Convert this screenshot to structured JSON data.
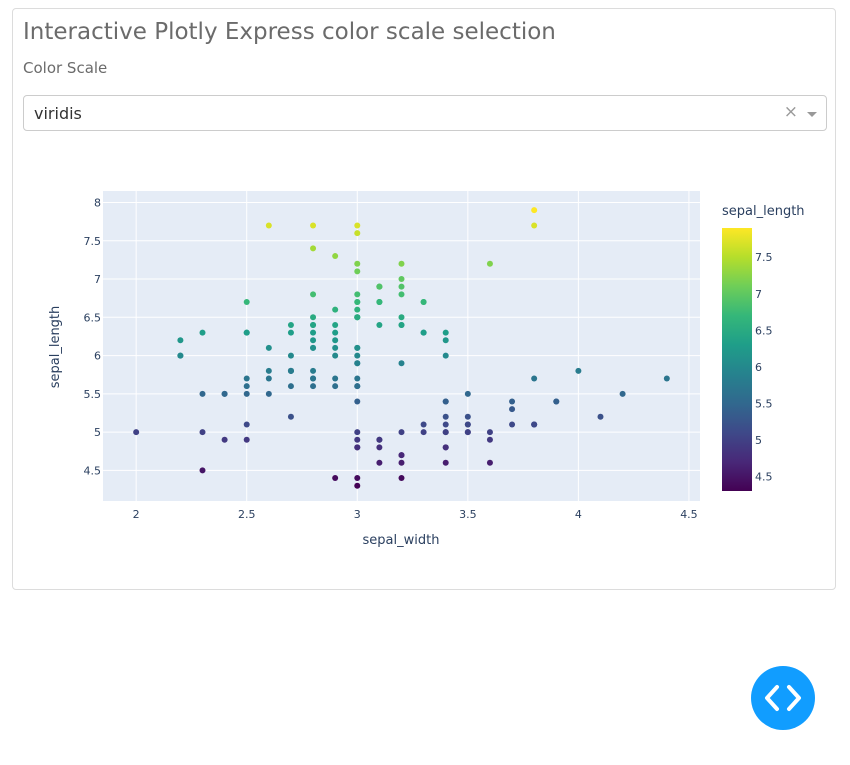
{
  "page": {
    "title": "Interactive Plotly Express color scale selection"
  },
  "control": {
    "label": "Color Scale",
    "selected": "viridis",
    "clear_glyph": "×"
  },
  "fab": {
    "icon": "code-icon",
    "color": "#119dff"
  },
  "colors": {
    "plot_bg": "#e5ecf6",
    "title_text": "#6b6b6b"
  },
  "chart_data": {
    "type": "scatter",
    "xlabel": "sepal_width",
    "ylabel": "sepal_length",
    "xlim": [
      1.85,
      4.55
    ],
    "ylim": [
      4.1,
      8.15
    ],
    "xticks": [
      2,
      2.5,
      3,
      3.5,
      4,
      4.5
    ],
    "ytick_values": [
      4.5,
      5,
      5.5,
      6,
      6.5,
      7,
      7.5,
      8
    ],
    "grid": true,
    "colorscale": "viridis",
    "colorbar": {
      "title": "sepal_length",
      "range": [
        4.3,
        7.9
      ],
      "tick_values": [
        4.5,
        5,
        5.5,
        6,
        6.5,
        7,
        7.5
      ],
      "tick_labels": [
        "4.5",
        "5",
        "5.5",
        "6",
        "6.5",
        "7",
        "7.5"
      ]
    },
    "points": [
      [
        3.5,
        5.1
      ],
      [
        3.0,
        4.9
      ],
      [
        3.2,
        4.7
      ],
      [
        3.1,
        4.6
      ],
      [
        3.6,
        5.0
      ],
      [
        3.9,
        5.4
      ],
      [
        3.4,
        4.6
      ],
      [
        3.4,
        5.0
      ],
      [
        2.9,
        4.4
      ],
      [
        3.1,
        4.9
      ],
      [
        3.7,
        5.4
      ],
      [
        3.4,
        4.8
      ],
      [
        3.0,
        4.8
      ],
      [
        3.0,
        4.3
      ],
      [
        4.0,
        5.8
      ],
      [
        4.4,
        5.7
      ],
      [
        3.9,
        5.4
      ],
      [
        3.5,
        5.1
      ],
      [
        3.8,
        5.7
      ],
      [
        3.8,
        5.1
      ],
      [
        3.4,
        5.4
      ],
      [
        3.7,
        5.1
      ],
      [
        3.6,
        4.6
      ],
      [
        3.3,
        5.1
      ],
      [
        3.4,
        4.8
      ],
      [
        3.0,
        5.0
      ],
      [
        3.4,
        5.0
      ],
      [
        3.5,
        5.2
      ],
      [
        3.4,
        5.2
      ],
      [
        3.2,
        4.7
      ],
      [
        3.1,
        4.8
      ],
      [
        3.4,
        5.4
      ],
      [
        4.1,
        5.2
      ],
      [
        4.2,
        5.5
      ],
      [
        3.1,
        4.9
      ],
      [
        3.2,
        5.0
      ],
      [
        3.5,
        5.5
      ],
      [
        3.6,
        4.9
      ],
      [
        3.0,
        4.4
      ],
      [
        3.4,
        5.1
      ],
      [
        3.5,
        5.0
      ],
      [
        2.3,
        4.5
      ],
      [
        3.2,
        4.4
      ],
      [
        3.5,
        5.0
      ],
      [
        3.8,
        5.1
      ],
      [
        3.0,
        4.8
      ],
      [
        3.8,
        5.1
      ],
      [
        3.2,
        4.6
      ],
      [
        3.7,
        5.3
      ],
      [
        3.3,
        5.0
      ],
      [
        3.2,
        7.0
      ],
      [
        3.2,
        6.4
      ],
      [
        3.1,
        6.9
      ],
      [
        2.3,
        5.5
      ],
      [
        2.8,
        6.5
      ],
      [
        2.8,
        5.7
      ],
      [
        3.3,
        6.3
      ],
      [
        2.4,
        4.9
      ],
      [
        2.9,
        6.6
      ],
      [
        2.7,
        5.2
      ],
      [
        2.0,
        5.0
      ],
      [
        3.0,
        5.9
      ],
      [
        2.2,
        6.0
      ],
      [
        2.9,
        6.1
      ],
      [
        2.9,
        5.6
      ],
      [
        3.1,
        6.7
      ],
      [
        3.0,
        5.6
      ],
      [
        2.7,
        5.8
      ],
      [
        2.2,
        6.2
      ],
      [
        2.5,
        5.6
      ],
      [
        3.2,
        5.9
      ],
      [
        2.8,
        6.1
      ],
      [
        2.5,
        6.3
      ],
      [
        2.8,
        6.1
      ],
      [
        2.9,
        6.4
      ],
      [
        3.0,
        6.6
      ],
      [
        2.8,
        6.8
      ],
      [
        3.0,
        6.7
      ],
      [
        2.9,
        6.0
      ],
      [
        2.6,
        5.7
      ],
      [
        2.4,
        5.5
      ],
      [
        2.4,
        5.5
      ],
      [
        2.7,
        5.8
      ],
      [
        2.7,
        6.0
      ],
      [
        3.0,
        5.4
      ],
      [
        3.4,
        6.0
      ],
      [
        3.1,
        6.7
      ],
      [
        2.3,
        6.3
      ],
      [
        3.0,
        5.6
      ],
      [
        2.5,
        5.5
      ],
      [
        2.6,
        5.5
      ],
      [
        3.0,
        6.1
      ],
      [
        2.6,
        5.8
      ],
      [
        2.3,
        5.0
      ],
      [
        2.7,
        5.6
      ],
      [
        3.0,
        5.7
      ],
      [
        2.9,
        5.7
      ],
      [
        2.9,
        6.2
      ],
      [
        2.5,
        5.1
      ],
      [
        2.8,
        5.7
      ],
      [
        3.3,
        6.3
      ],
      [
        2.7,
        5.8
      ],
      [
        3.0,
        7.1
      ],
      [
        2.9,
        6.3
      ],
      [
        3.0,
        6.5
      ],
      [
        3.0,
        7.6
      ],
      [
        2.5,
        4.9
      ],
      [
        2.9,
        7.3
      ],
      [
        2.5,
        6.7
      ],
      [
        3.6,
        7.2
      ],
      [
        3.2,
        6.5
      ],
      [
        2.7,
        6.4
      ],
      [
        3.0,
        6.8
      ],
      [
        2.5,
        5.7
      ],
      [
        2.8,
        5.8
      ],
      [
        3.2,
        6.4
      ],
      [
        3.0,
        6.5
      ],
      [
        3.8,
        7.7
      ],
      [
        2.6,
        7.7
      ],
      [
        2.2,
        6.0
      ],
      [
        3.2,
        6.9
      ],
      [
        2.8,
        5.6
      ],
      [
        2.8,
        7.7
      ],
      [
        2.7,
        6.3
      ],
      [
        3.3,
        6.7
      ],
      [
        3.2,
        7.2
      ],
      [
        2.8,
        6.2
      ],
      [
        3.0,
        6.1
      ],
      [
        2.8,
        6.4
      ],
      [
        3.0,
        7.2
      ],
      [
        2.8,
        7.4
      ],
      [
        3.8,
        7.9
      ],
      [
        2.8,
        6.4
      ],
      [
        2.8,
        6.3
      ],
      [
        2.6,
        6.1
      ],
      [
        3.0,
        7.7
      ],
      [
        3.4,
        6.3
      ],
      [
        3.1,
        6.4
      ],
      [
        3.0,
        6.0
      ],
      [
        3.1,
        6.9
      ],
      [
        3.1,
        6.7
      ],
      [
        3.1,
        6.9
      ],
      [
        2.7,
        5.8
      ],
      [
        3.2,
        6.8
      ],
      [
        3.3,
        6.7
      ],
      [
        3.0,
        6.7
      ],
      [
        2.5,
        6.3
      ],
      [
        3.0,
        6.5
      ],
      [
        3.4,
        6.2
      ],
      [
        3.0,
        5.9
      ]
    ]
  }
}
